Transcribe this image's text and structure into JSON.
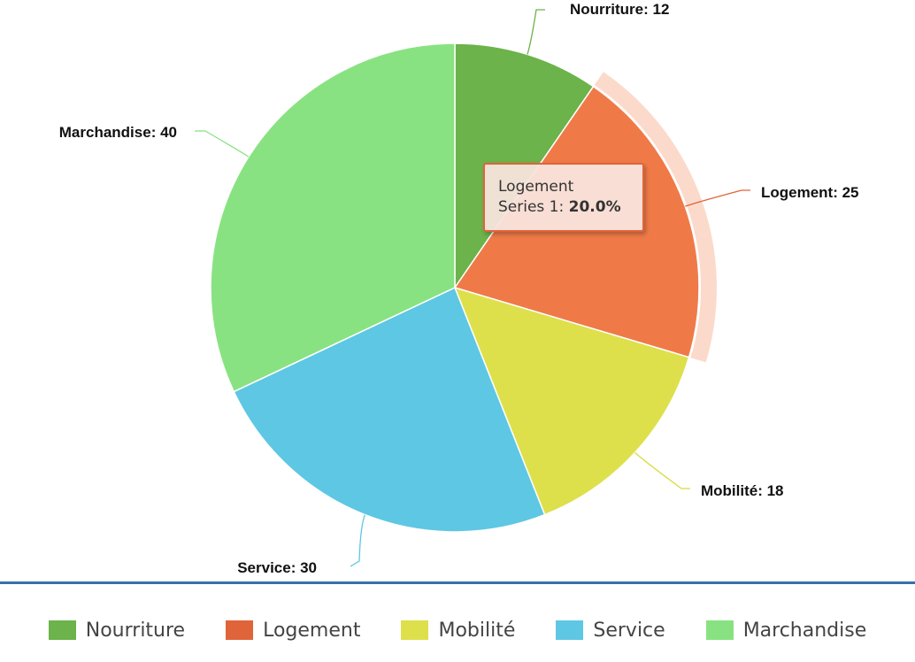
{
  "chart_data": {
    "type": "pie",
    "categories": [
      "Nourriture",
      "Logement",
      "Mobilité",
      "Service",
      "Marchandise"
    ],
    "values": [
      12,
      25,
      18,
      30,
      40
    ],
    "colors": [
      "#6bb34a",
      "#ef7a48",
      "#dde04b",
      "#5ec7e3",
      "#89e281"
    ],
    "data_labels": [
      "Nourriture: 12",
      "Logement: 25",
      "Mobilité: 18",
      "Service: 30",
      "Marchandise: 40"
    ],
    "series_name": "Series 1",
    "highlighted_index": 1,
    "legend_position": "bottom"
  },
  "legend": {
    "items": [
      {
        "label": "Nourriture",
        "color": "#6bb34a"
      },
      {
        "label": "Logement",
        "color": "#e0643a"
      },
      {
        "label": "Mobilité",
        "color": "#dde04b"
      },
      {
        "label": "Service",
        "color": "#5ec7e3"
      },
      {
        "label": "Marchandise",
        "color": "#89e281"
      }
    ]
  },
  "tooltip": {
    "category": "Logement",
    "series_label": "Series 1: ",
    "percent": "20.0%"
  }
}
